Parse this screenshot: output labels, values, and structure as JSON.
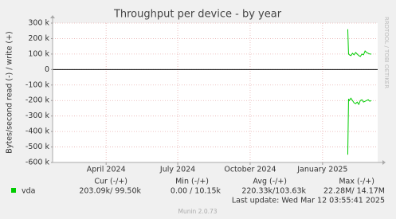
{
  "chart_data": {
    "type": "line",
    "title": "Throughput per device - by year",
    "y_label": "Bytes/second read (-) / write (+)",
    "side_label": "RRDTOOL / TOBI OETIKER",
    "xlim": [
      "2024-01-24",
      "2025-03-12"
    ],
    "xticks": [
      {
        "value": "2024-04-01",
        "label": "April 2024"
      },
      {
        "value": "2024-07-01",
        "label": "July 2024"
      },
      {
        "value": "2024-10-01",
        "label": "October 2024"
      },
      {
        "value": "2025-01-01",
        "label": "January 2025"
      }
    ],
    "ylim": [
      -600000,
      300000
    ],
    "yticks": [
      {
        "value": 300000,
        "label": "300 k"
      },
      {
        "value": 200000,
        "label": "200 k"
      },
      {
        "value": 100000,
        "label": "100 k"
      },
      0,
      {
        "value": -100000,
        "label": "-100 k"
      },
      {
        "value": -200000,
        "label": "-200 k"
      },
      {
        "value": -300000,
        "label": "-300 k"
      },
      {
        "value": -400000,
        "label": "-400 k"
      },
      {
        "value": -500000,
        "label": "-500 k"
      },
      {
        "value": -600000,
        "label": "-600 k"
      }
    ],
    "grid": true,
    "x": [
      "2025-02-02",
      "2025-02-03",
      "2025-02-04",
      "2025-02-06",
      "2025-02-08",
      "2025-02-10",
      "2025-02-12",
      "2025-02-14",
      "2025-02-16",
      "2025-02-18",
      "2025-02-20",
      "2025-02-22",
      "2025-02-24",
      "2025-02-26",
      "2025-02-28",
      "2025-03-02",
      "2025-03-04"
    ],
    "series": [
      {
        "color": "#00cc00",
        "values": [
          260000,
          100000,
          95000,
          90000,
          105000,
          95000,
          110000,
          100000,
          90000,
          85000,
          100000,
          95000,
          120000,
          110000,
          105000,
          100000,
          100000
        ]
      },
      {
        "color": "#00cc00",
        "values": [
          -550000,
          -190000,
          -200000,
          -185000,
          -200000,
          -215000,
          -220000,
          -210000,
          -225000,
          -200000,
          -195000,
          -210000,
          -205000,
          -200000,
          -195000,
          -205000,
          -200000
        ]
      }
    ],
    "legend": {
      "label": "vda",
      "color": "#00cc00",
      "headers": [
        "Cur (-/+)",
        "Min (-/+)",
        "Avg (-/+)",
        "Max (-/+)"
      ],
      "values": [
        "203.09k/ 99.50k",
        "0.00 / 10.15k",
        "220.33k/103.63k",
        "22.28M/ 14.17M"
      ]
    },
    "last_update": "Last update: Wed Mar 12 03:55:41 2025",
    "footer": "Munin 2.0.73"
  }
}
